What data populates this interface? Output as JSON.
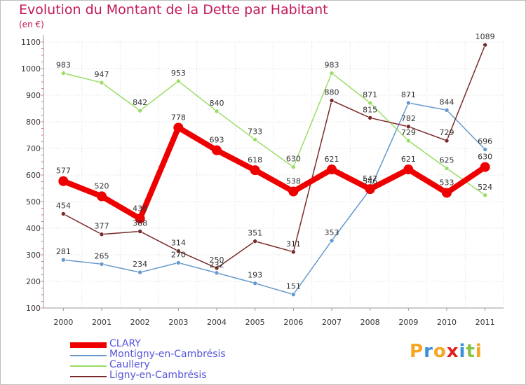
{
  "title": "Evolution du Montant de la Dette par Habitant",
  "subtitle": "(en €)",
  "logo": {
    "text": "Proxiti",
    "letters": [
      {
        "char": "P",
        "color": "#f5a623"
      },
      {
        "char": "r",
        "color": "#3b8fd9"
      },
      {
        "char": "o",
        "color": "#f5a623"
      },
      {
        "char": "x",
        "color": "#e02020"
      },
      {
        "char": "i",
        "color": "#3b8fd9"
      },
      {
        "char": "t",
        "color": "#8bc34a"
      },
      {
        "char": "i",
        "color": "#f5a623"
      }
    ]
  },
  "chart_data": {
    "type": "line",
    "x": [
      "2000",
      "2001",
      "2002",
      "2003",
      "2004",
      "2005",
      "2006",
      "2007",
      "2008",
      "2009",
      "2010",
      "2011"
    ],
    "ylim": [
      100,
      1100
    ],
    "yticks": [
      100,
      200,
      300,
      400,
      500,
      600,
      700,
      800,
      900,
      1000,
      1100
    ],
    "grid": true,
    "legend_position": "bottom",
    "series": [
      {
        "name": "CLARY",
        "color": "#ee0000",
        "width": 8,
        "marker": 7,
        "values": [
          577,
          520,
          436,
          778,
          693,
          618,
          538,
          621,
          547,
          621,
          533,
          630
        ]
      },
      {
        "name": "Montigny-en-Cambrésis",
        "color": "#6699cc",
        "width": 1.5,
        "marker": 3,
        "values": [
          281,
          265,
          234,
          270,
          232,
          193,
          151,
          353,
          546,
          871,
          844,
          696
        ]
      },
      {
        "name": "Caullery",
        "color": "#99dd66",
        "width": 1.5,
        "marker": 3,
        "values": [
          983,
          947,
          842,
          953,
          840,
          733,
          630,
          983,
          871,
          729,
          625,
          524
        ]
      },
      {
        "name": "Ligny-en-Cambrésis",
        "color": "#7a2a2a",
        "width": 1.5,
        "marker": 3,
        "values": [
          454,
          377,
          388,
          314,
          250,
          351,
          311,
          880,
          815,
          782,
          729,
          1089
        ]
      }
    ]
  }
}
